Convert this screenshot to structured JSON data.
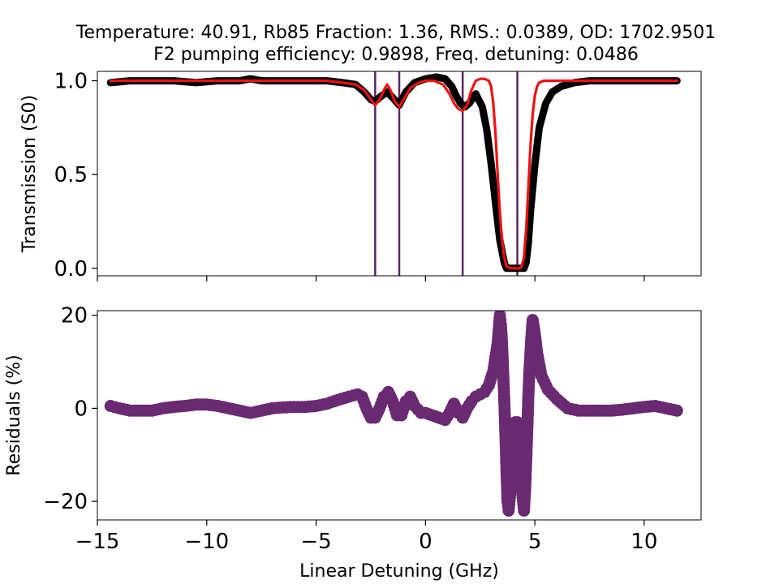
{
  "figure": {
    "title_line1": "Temperature: 40.91, Rb85 Fraction: 1.36, RMS.: 0.0389, OD: 1702.9501",
    "title_line2": "F2 pumping efficiency: 0.9898, Freq. detuning: 0.0486"
  },
  "colors": {
    "data": "#000000",
    "fit": "#ee1111",
    "markers": "#5b2567",
    "residuals": "#6a2a72"
  },
  "chart_data": [
    {
      "type": "line",
      "ylabel": "Transmission (S0)",
      "xlim": [
        -15.0,
        12.6
      ],
      "ylim": [
        -0.04,
        1.05
      ],
      "yticks": [
        {
          "value": 0.0,
          "label": "0.0"
        },
        {
          "value": 0.5,
          "label": "0.5"
        },
        {
          "value": 1.0,
          "label": "1.0"
        }
      ],
      "xticks": [
        -15,
        -10,
        -5,
        0,
        5,
        10
      ],
      "vertical_lines": [
        -2.3,
        -1.2,
        1.7,
        4.2
      ],
      "series": [
        {
          "role": "data",
          "x": [
            -14.4,
            -13.5,
            -12.5,
            -11.5,
            -10.5,
            -9.5,
            -8.5,
            -8.0,
            -7.5,
            -6.5,
            -5.5,
            -4.5,
            -3.8,
            -3.2,
            -2.8,
            -2.5,
            -2.3,
            -2.0,
            -1.75,
            -1.5,
            -1.2,
            -0.9,
            -0.5,
            0.0,
            0.5,
            0.9,
            1.2,
            1.4,
            1.6,
            1.8,
            2.0,
            2.3,
            2.6,
            2.8,
            3.0,
            3.2,
            3.4,
            3.6,
            3.7,
            3.8,
            4.0,
            4.3,
            4.5,
            4.6,
            4.7,
            4.8,
            5.0,
            5.2,
            5.5,
            5.8,
            6.2,
            6.8,
            7.5,
            8.5,
            9.5,
            10.5,
            11.5
          ],
          "y": [
            0.99,
            1.0,
            1.0,
            1.0,
            0.99,
            1.0,
            1.0,
            1.01,
            1.0,
            1.0,
            1.0,
            1.0,
            0.99,
            0.98,
            0.94,
            0.9,
            0.89,
            0.92,
            0.94,
            0.91,
            0.87,
            0.94,
            0.99,
            1.01,
            1.02,
            1.01,
            0.97,
            0.92,
            0.88,
            0.86,
            0.88,
            0.93,
            0.86,
            0.74,
            0.56,
            0.35,
            0.15,
            0.03,
            0.0,
            0.0,
            0.0,
            0.0,
            0.0,
            0.03,
            0.13,
            0.3,
            0.55,
            0.75,
            0.88,
            0.94,
            0.97,
            0.99,
            1.0,
            1.0,
            1.0,
            1.0,
            1.0
          ]
        },
        {
          "role": "fit",
          "x": [
            -14.4,
            -13.5,
            -12.5,
            -11.5,
            -10.5,
            -9.5,
            -8.5,
            -7.5,
            -6.5,
            -5.5,
            -4.5,
            -3.8,
            -3.2,
            -2.8,
            -2.5,
            -2.3,
            -2.1,
            -1.9,
            -1.75,
            -1.6,
            -1.4,
            -1.2,
            -1.0,
            -0.7,
            -0.3,
            0.0,
            0.4,
            0.8,
            1.1,
            1.3,
            1.5,
            1.7,
            1.9,
            2.1,
            2.3,
            2.5,
            2.7,
            2.9,
            3.0,
            3.1,
            3.2,
            3.3,
            3.4,
            3.5,
            3.6,
            3.7,
            3.9,
            4.1,
            4.3,
            4.4,
            4.5,
            4.6,
            4.7,
            4.8,
            4.9,
            5.0,
            5.1,
            5.2,
            5.4,
            5.8,
            6.5,
            7.5,
            8.5,
            9.5,
            10.5,
            11.5
          ],
          "y": [
            1.0,
            1.0,
            1.0,
            1.0,
            1.0,
            1.0,
            1.0,
            1.0,
            1.0,
            1.0,
            1.0,
            0.99,
            0.98,
            0.95,
            0.9,
            0.87,
            0.9,
            0.95,
            0.98,
            0.95,
            0.89,
            0.86,
            0.9,
            0.96,
            0.99,
            1.0,
            1.0,
            0.98,
            0.93,
            0.88,
            0.85,
            0.84,
            0.87,
            0.95,
            1.0,
            1.01,
            1.01,
            1.0,
            0.97,
            0.88,
            0.72,
            0.5,
            0.3,
            0.15,
            0.06,
            0.01,
            0.0,
            0.0,
            0.0,
            0.01,
            0.06,
            0.2,
            0.42,
            0.65,
            0.82,
            0.92,
            0.97,
            0.99,
            1.0,
            1.0,
            1.0,
            1.0,
            1.0,
            1.0,
            1.0,
            1.0
          ]
        }
      ]
    },
    {
      "type": "scatter",
      "xlabel": "Linear Detuning (GHz)",
      "ylabel": "Residuals (%)",
      "xlim": [
        -15.0,
        12.6
      ],
      "ylim": [
        -24,
        21
      ],
      "yticks": [
        {
          "value": -20,
          "label": "−20"
        },
        {
          "value": 0,
          "label": "0"
        },
        {
          "value": 20,
          "label": "20"
        }
      ],
      "xticks": [
        {
          "value": -15,
          "label": "−15"
        },
        {
          "value": -10,
          "label": "−10"
        },
        {
          "value": -5,
          "label": "−5"
        },
        {
          "value": 0,
          "label": "0"
        },
        {
          "value": 5,
          "label": "5"
        },
        {
          "value": 10,
          "label": "10"
        }
      ],
      "series": [
        {
          "role": "residuals",
          "x": [
            -14.4,
            -14.0,
            -13.5,
            -13.0,
            -12.5,
            -12.0,
            -11.5,
            -11.0,
            -10.5,
            -10.0,
            -9.5,
            -9.0,
            -8.5,
            -8.0,
            -7.5,
            -7.0,
            -6.5,
            -6.0,
            -5.5,
            -5.0,
            -4.5,
            -4.0,
            -3.5,
            -3.1,
            -2.9,
            -2.7,
            -2.5,
            -2.3,
            -2.1,
            -1.9,
            -1.7,
            -1.5,
            -1.3,
            -1.1,
            -0.9,
            -0.7,
            -0.5,
            -0.2,
            0.0,
            0.3,
            0.6,
            0.9,
            1.1,
            1.3,
            1.5,
            1.7,
            1.9,
            2.1,
            2.3,
            2.5,
            2.7,
            2.9,
            3.1,
            3.2,
            3.3,
            3.35,
            3.4,
            3.45,
            3.5,
            3.55,
            3.6,
            3.65,
            3.7,
            3.75,
            3.8,
            3.9,
            4.0,
            4.1,
            4.2,
            4.3,
            4.4,
            4.5,
            4.55,
            4.6,
            4.65,
            4.7,
            4.75,
            4.8,
            4.85,
            4.9,
            5.0,
            5.1,
            5.3,
            5.6,
            6.0,
            6.5,
            7.0,
            7.5,
            8.0,
            8.5,
            9.0,
            9.5,
            10.0,
            10.5,
            11.0,
            11.5
          ],
          "y": [
            0.5,
            0.0,
            -0.5,
            -0.5,
            -0.5,
            0.0,
            0.3,
            0.5,
            0.8,
            0.8,
            0.5,
            0.0,
            -0.5,
            -1.0,
            -0.5,
            0.0,
            0.2,
            0.3,
            0.3,
            0.5,
            1.0,
            1.8,
            2.5,
            3.0,
            2.5,
            0.0,
            -2.0,
            -2.0,
            0.0,
            2.5,
            3.5,
            1.5,
            -1.5,
            -1.5,
            1.5,
            2.5,
            0.5,
            -1.0,
            -1.0,
            -1.5,
            -2.0,
            -2.5,
            -1.0,
            1.0,
            -1.0,
            -2.0,
            0.0,
            1.5,
            2.5,
            3.0,
            3.5,
            5.0,
            8.0,
            11.0,
            14.0,
            17.0,
            20.0,
            18.0,
            14.0,
            8.0,
            2.0,
            -5.0,
            -13.0,
            -20.0,
            -22.0,
            -17.0,
            -8.0,
            -3.0,
            -3.0,
            -8.0,
            -17.0,
            -22.0,
            -18.0,
            -12.0,
            -5.0,
            2.0,
            8.0,
            12.0,
            16.0,
            19.0,
            16.0,
            12.0,
            7.0,
            4.0,
            2.0,
            0.0,
            -0.5,
            -0.5,
            -0.5,
            -0.5,
            -0.3,
            0.0,
            0.3,
            0.5,
            0.0,
            -0.5
          ]
        }
      ]
    }
  ]
}
